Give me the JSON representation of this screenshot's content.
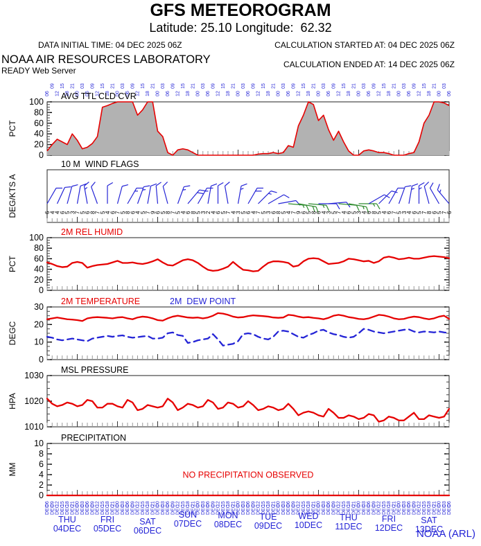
{
  "header": {
    "title": "GFS METEOROGRAM",
    "subtitle": "Latitude: 25.10 Longitude:  62.32",
    "data_initial_time": "DATA INITIAL TIME: 04 DEC 2025 06Z",
    "calc_started": "CALCULATION STARTED AT: 04 DEC 2025 06Z",
    "calc_ended": "CALCULATION ENDED AT: 14 DEC 2025 06Z",
    "org": "NOAA AIR RESOURCES LABORATORY",
    "server": "READY Web Server"
  },
  "footer": {
    "credit": "NOAA (ARL)"
  },
  "colors": {
    "red": "#e60000",
    "blue": "#2424d6",
    "green": "#2e8b2e",
    "gray_fill": "#b2b2b2",
    "tick_gray": "#999999",
    "black": "#000000"
  },
  "time_axis": {
    "steps": 81,
    "hour_cycle": [
      "06",
      "09",
      "12",
      "15",
      "18",
      "21",
      "00",
      "03"
    ],
    "month_label": "DEC",
    "days": [
      {
        "dow": "THU",
        "date": "04DEC"
      },
      {
        "dow": "FRI",
        "date": "05DEC"
      },
      {
        "dow": "SAT",
        "date": "06DEC"
      },
      {
        "dow": "SUN",
        "date": "07DEC"
      },
      {
        "dow": "MON",
        "date": "08DEC"
      },
      {
        "dow": "TUE",
        "date": "09DEC"
      },
      {
        "dow": "WED",
        "date": "10DEC"
      },
      {
        "dow": "THU",
        "date": "11DEC"
      },
      {
        "dow": "FRI",
        "date": "12DEC"
      },
      {
        "dow": "SAT",
        "date": "13DEC"
      }
    ]
  },
  "chart_data": [
    {
      "type": "area",
      "title": "AVG TTL CLD CVR",
      "title_color": "#000000",
      "ylabel": "PCT",
      "ylim": [
        0,
        100
      ],
      "yticks": [
        0,
        20,
        40,
        60,
        80,
        100
      ],
      "minor_step": 5,
      "series_color": "#e60000",
      "fill_color": "#b2b2b2",
      "values": [
        8,
        20,
        30,
        25,
        20,
        40,
        28,
        12,
        15,
        22,
        35,
        90,
        93,
        97,
        100,
        100,
        100,
        100,
        75,
        85,
        100,
        100,
        45,
        35,
        5,
        0,
        10,
        12,
        10,
        5,
        0,
        0,
        0,
        0,
        0,
        0,
        0,
        0,
        0,
        0,
        0,
        0,
        2,
        3,
        3,
        5,
        3,
        5,
        18,
        15,
        55,
        75,
        100,
        95,
        65,
        75,
        48,
        28,
        45,
        25,
        8,
        0,
        0,
        8,
        10,
        8,
        5,
        5,
        3,
        0,
        0,
        0,
        3,
        5,
        25,
        60,
        75,
        100,
        100,
        98,
        93
      ]
    },
    {
      "type": "wind_barbs",
      "title": "10 M  WIND FLAGS",
      "title_color": "#000000",
      "ylabel": "DEG/KTS A",
      "barb_step": 2,
      "directions": [
        30,
        25,
        15,
        10,
        350,
        340,
        0,
        15,
        30,
        20,
        10,
        355,
        345,
        20,
        40,
        30,
        10,
        0,
        350,
        10,
        30,
        45,
        60,
        80,
        95,
        100,
        95,
        90,
        85,
        95,
        100,
        90,
        60,
        45,
        30,
        20,
        10,
        0,
        345,
        330,
        320
      ],
      "speeds": [
        7,
        5,
        5,
        7,
        8,
        6,
        5,
        7,
        9,
        8,
        6,
        5,
        7,
        9,
        10,
        8,
        7,
        5,
        6,
        8,
        10,
        9,
        7,
        6,
        8,
        10,
        9,
        7,
        6,
        7,
        9,
        8,
        7,
        6,
        5,
        7,
        8,
        9,
        7,
        6,
        8
      ],
      "green_indices": [
        24,
        25,
        26,
        29,
        30,
        31
      ],
      "speed_labels": [
        6,
        4,
        4,
        6,
        5,
        3,
        7,
        5,
        6,
        8,
        7,
        5,
        4,
        6,
        7,
        5,
        8,
        6,
        4,
        5,
        7,
        9,
        6,
        5,
        8,
        7,
        5,
        4,
        6,
        8,
        5,
        3,
        2,
        4,
        6,
        5,
        7,
        4,
        3,
        5,
        6,
        4,
        7,
        5,
        3,
        6,
        8,
        5,
        4,
        7,
        9,
        6,
        5,
        8,
        6,
        4,
        3,
        5,
        7,
        4,
        6,
        5,
        3,
        4,
        6,
        8,
        5,
        4,
        6,
        7,
        5,
        3,
        4,
        6,
        5,
        7,
        8,
        6,
        5,
        7,
        6
      ]
    },
    {
      "type": "line",
      "title": "2M REL HUMID",
      "title_color": "#e60000",
      "ylabel": "PCT",
      "ylim": [
        0,
        100
      ],
      "yticks": [
        0,
        20,
        40,
        60,
        80,
        100
      ],
      "minor_step": 5,
      "series": [
        {
          "name": "2M REL HUMID",
          "color": "#e60000",
          "dashed": false,
          "values": [
            53,
            50,
            46,
            44,
            45,
            52,
            54,
            52,
            43,
            46,
            48,
            49,
            50,
            53,
            56,
            52,
            52,
            53,
            51,
            50,
            52,
            55,
            59,
            53,
            48,
            47,
            52,
            57,
            59,
            57,
            52,
            45,
            39,
            37,
            38,
            41,
            45,
            54,
            46,
            39,
            38,
            36,
            37,
            45,
            52,
            55,
            55,
            54,
            52,
            45,
            47,
            55,
            60,
            61,
            60,
            55,
            50,
            51,
            52,
            55,
            60,
            59,
            57,
            55,
            56,
            52,
            55,
            62,
            64,
            62,
            59,
            60,
            62,
            60,
            60,
            62,
            64,
            65,
            64,
            63,
            61
          ]
        }
      ]
    },
    {
      "type": "line",
      "title": "",
      "title_color": "#000000",
      "ylabel": "DEGC",
      "ylim": [
        0,
        30
      ],
      "yticks": [
        0,
        10,
        20,
        30
      ],
      "minor_step": 2.5,
      "series": [
        {
          "name": "2M TEMPERATURE",
          "color": "#e60000",
          "dashed": false,
          "values": [
            23,
            23.5,
            24,
            23.5,
            23,
            22.8,
            22.5,
            22,
            23.5,
            24,
            24.2,
            24,
            23.8,
            23.5,
            24,
            24.2,
            23.5,
            23,
            24,
            24.5,
            24.2,
            23.5,
            22.5,
            22.2,
            23.5,
            24.5,
            25,
            24.5,
            24,
            23.8,
            24,
            23.5,
            24,
            25,
            26.5,
            26.2,
            25.5,
            24.5,
            24,
            24.2,
            24.8,
            25.2,
            25,
            24.8,
            24.5,
            24,
            23.8,
            24,
            25.5,
            25.2,
            24.5,
            24,
            24.2,
            23.8,
            23.5,
            23,
            23.8,
            25,
            25.5,
            25,
            24.2,
            23.8,
            23.2,
            23,
            23.5,
            24.5,
            25.5,
            25.2,
            24.5,
            23.5,
            23,
            23.2,
            24,
            24.5,
            24.2,
            23.5,
            23,
            23.5,
            24.5,
            25,
            23.2
          ]
        },
        {
          "name": "2M  DEW POINT",
          "color": "#2424d6",
          "dashed": true,
          "values": [
            13,
            12.5,
            11.5,
            11,
            11.5,
            12,
            11.5,
            11,
            10.5,
            12,
            12.5,
            13,
            13.5,
            13,
            13.5,
            13.8,
            13,
            12.5,
            12.8,
            13.2,
            13.5,
            12,
            12,
            12.5,
            15,
            15.5,
            14,
            13.5,
            9.5,
            10,
            11,
            11.5,
            12,
            14.5,
            11.5,
            8,
            8.5,
            9,
            10.5,
            14.5,
            15,
            14.5,
            13,
            12,
            11.5,
            13,
            16,
            16.5,
            16,
            14.5,
            13,
            12.5,
            14,
            15,
            16.5,
            17,
            15.5,
            14.5,
            14,
            13,
            12.5,
            13,
            15,
            17.5,
            17,
            16,
            15.5,
            15,
            15.5,
            16,
            16.5,
            17,
            17.2,
            16,
            15.5,
            16,
            15.8,
            15.5,
            16,
            15.5,
            15.2
          ]
        }
      ]
    },
    {
      "type": "line",
      "title": "MSL PRESSURE",
      "title_color": "#000000",
      "ylabel": "HPA",
      "ylim": [
        1010,
        1030
      ],
      "yticks": [
        1010,
        1020,
        1030
      ],
      "minor_step": 2.5,
      "series": [
        {
          "name": "MSL PRESSURE",
          "color": "#e60000",
          "dashed": false,
          "values": [
            1021,
            1019,
            1018,
            1018.5,
            1019.5,
            1019,
            1018,
            1018.5,
            1020.5,
            1020,
            1017.5,
            1017.5,
            1019,
            1019,
            1018,
            1017.5,
            1020.5,
            1019.5,
            1016.5,
            1017,
            1018.5,
            1018,
            1017.5,
            1018,
            1021,
            1019.5,
            1016.5,
            1017.5,
            1019,
            1018.5,
            1017.5,
            1018,
            1020.5,
            1019.5,
            1017,
            1017.5,
            1019.5,
            1019,
            1017.5,
            1018,
            1020,
            1018.5,
            1016.5,
            1017,
            1018,
            1017.5,
            1016.5,
            1017,
            1019,
            1017,
            1014.5,
            1015.5,
            1016,
            1015.5,
            1014.5,
            1014,
            1017,
            1015.5,
            1013.5,
            1013.5,
            1014.5,
            1014,
            1013,
            1013.5,
            1015,
            1014.5,
            1012,
            1012.5,
            1014,
            1013.5,
            1012.5,
            1012.5,
            1014,
            1015.5,
            1013,
            1013,
            1014.5,
            1014,
            1013.5,
            1014,
            1017
          ]
        }
      ]
    },
    {
      "type": "line",
      "title": "PRECIPITATION",
      "title_color": "#000000",
      "ylabel": "MM",
      "ylim": [
        0,
        10
      ],
      "yticks": [
        0,
        2,
        4,
        6,
        8,
        10
      ],
      "minor_step": 1,
      "annotation": "NO PRECIPITATION OBSERVED",
      "annotation_color": "#e60000",
      "series": [
        {
          "name": "PRECIPITATION",
          "color": "#e60000",
          "dashed": false,
          "values": [
            0,
            0,
            0,
            0,
            0,
            0,
            0,
            0,
            0,
            0,
            0,
            0,
            0,
            0,
            0,
            0,
            0,
            0,
            0,
            0,
            0,
            0,
            0,
            0,
            0,
            0,
            0,
            0,
            0,
            0,
            0,
            0,
            0,
            0,
            0,
            0,
            0,
            0,
            0,
            0,
            0,
            0,
            0,
            0,
            0,
            0,
            0,
            0,
            0,
            0,
            0,
            0,
            0,
            0,
            0,
            0,
            0,
            0,
            0,
            0,
            0,
            0,
            0,
            0,
            0,
            0,
            0,
            0,
            0,
            0,
            0,
            0,
            0,
            0,
            0,
            0,
            0,
            0,
            0,
            0,
            0
          ]
        }
      ]
    }
  ]
}
